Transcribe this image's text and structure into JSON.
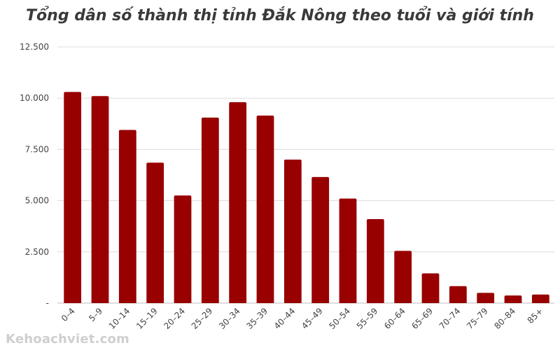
{
  "chart_data": {
    "type": "bar",
    "title": "Tổng dân số thành thị tỉnh Đắk Nông theo tuổi và giới tính",
    "xlabel": "",
    "ylabel": "",
    "categories": [
      "0–4",
      "5–9",
      "10–14",
      "15–19",
      "20–24",
      "25–29",
      "30–34",
      "35–39",
      "40–44",
      "45–49",
      "50–54",
      "55–59",
      "60–64",
      "65–69",
      "70–74",
      "75–79",
      "80–84",
      "85+"
    ],
    "values": [
      10300,
      10100,
      8450,
      6850,
      5250,
      9050,
      9800,
      9150,
      7000,
      6150,
      5100,
      4100,
      2550,
      1450,
      830,
      500,
      370,
      420
    ],
    "ylim": [
      0,
      12500
    ],
    "yticks": [
      0,
      2500,
      5000,
      7500,
      10000,
      12500
    ],
    "ytick_labels": [
      "-",
      "2.500",
      "5.000",
      "7.500",
      "10.000",
      "12.500"
    ],
    "bar_color": "#990000",
    "grid": true,
    "legend": "none"
  },
  "watermark": "Kehoachviet.com"
}
